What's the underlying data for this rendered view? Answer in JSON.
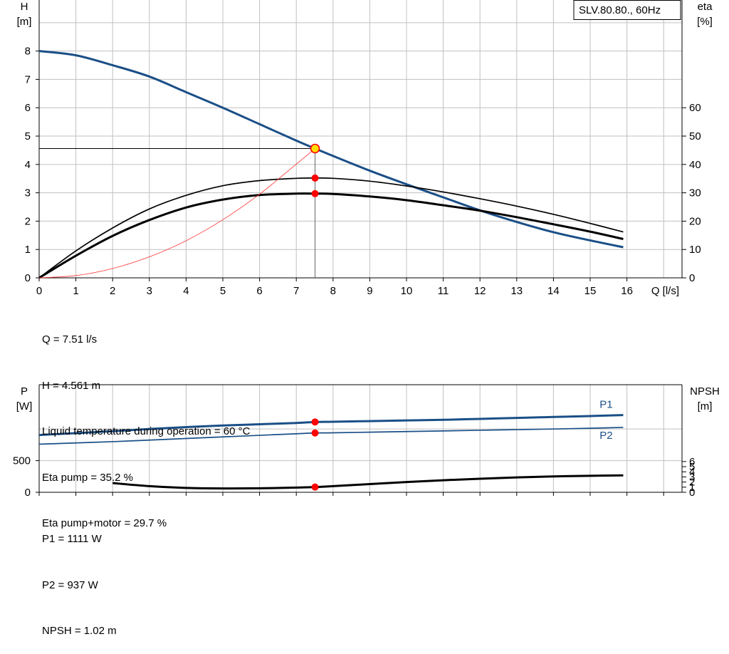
{
  "chart_data": [
    {
      "type": "line",
      "title": "SLV.80.80., 60Hz",
      "xlabel": "Q [l/s]",
      "ylabel_left": [
        "H",
        "[m]"
      ],
      "ylabel_right": [
        "eta",
        "[%]"
      ],
      "x_ticks": [
        "0",
        "1",
        "2",
        "3",
        "4",
        "5",
        "6",
        "7",
        "8",
        "9",
        "10",
        "11",
        "12",
        "13",
        "14",
        "15",
        "16"
      ],
      "y_left_ticks": [
        "0",
        "1",
        "2",
        "3",
        "4",
        "5",
        "6",
        "7",
        "8"
      ],
      "y_right_ticks": [
        "0",
        "10",
        "20",
        "30",
        "40",
        "50",
        "60"
      ],
      "xlim": [
        0,
        17.5
      ],
      "ylim_left": [
        0,
        9.8
      ],
      "ylim_right": [
        0,
        98
      ],
      "grid": true,
      "series": [
        {
          "name": "",
          "axis": "left",
          "color": "#1a4f87",
          "width": 3,
          "x": [
            0,
            1,
            2,
            3,
            4,
            5,
            6,
            7,
            7.51,
            8,
            9,
            10,
            11,
            12,
            13,
            14,
            15,
            15.9
          ],
          "values": [
            8.0,
            7.85,
            7.5,
            7.1,
            6.55,
            6.0,
            5.42,
            4.84,
            4.561,
            4.3,
            3.78,
            3.3,
            2.84,
            2.38,
            1.97,
            1.61,
            1.32,
            1.08
          ]
        },
        {
          "name": "",
          "axis": "right",
          "color": "#000000",
          "width": 1.7,
          "x": [
            0,
            1,
            2,
            3,
            4,
            5,
            6,
            7,
            7.51,
            8,
            9,
            10,
            11,
            12,
            13,
            14,
            15,
            15.9
          ],
          "values": [
            0,
            9.5,
            17.6,
            24.3,
            29.1,
            32.5,
            34.3,
            35.1,
            35.2,
            35.1,
            34.1,
            32.4,
            30.3,
            27.9,
            25.3,
            22.4,
            19.2,
            16.2
          ]
        },
        {
          "name": "",
          "axis": "right",
          "color": "#000000",
          "width": 3,
          "x": [
            0,
            1,
            2,
            3,
            4,
            5,
            6,
            7,
            7.51,
            8,
            9,
            10,
            11,
            12,
            13,
            14,
            15,
            15.9
          ],
          "values": [
            0,
            7.8,
            14.8,
            20.4,
            24.8,
            27.6,
            29.2,
            29.7,
            29.7,
            29.6,
            28.7,
            27.4,
            25.6,
            23.7,
            21.4,
            18.9,
            16.3,
            13.7
          ]
        },
        {
          "name": "",
          "axis": "left",
          "color": "#ff3333",
          "width": 0.8,
          "x": [
            0,
            1,
            2,
            3,
            4,
            5,
            6,
            7,
            7.51
          ],
          "values": [
            0,
            0.08,
            0.33,
            0.74,
            1.31,
            2.05,
            2.95,
            4.01,
            4.561
          ]
        }
      ],
      "operating_point": {
        "x": 7.51,
        "H": 4.561,
        "eta_pump": 35.2,
        "eta_pump_motor": 29.7
      }
    },
    {
      "type": "line",
      "ylabel_left": [
        "P",
        "[W]"
      ],
      "ylabel_right": [
        "NPSH",
        "[m]"
      ],
      "y_left_ticks": [
        "0",
        "500"
      ],
      "y_right_ticks": [
        "0",
        "1",
        "2",
        "3",
        "4",
        "5",
        "6"
      ],
      "xlim": [
        0,
        17.5
      ],
      "ylim_left": [
        0,
        1700
      ],
      "ylim_right": [
        0,
        21
      ],
      "grid": true,
      "series": [
        {
          "name": "P1",
          "axis": "left",
          "color": "#1a4f87",
          "width": 3,
          "x": [
            0,
            1,
            2,
            3,
            4,
            5,
            6,
            7,
            7.51,
            8,
            9,
            10,
            11,
            12,
            13,
            14,
            15,
            15.9
          ],
          "values": [
            905,
            935,
            965,
            1000,
            1030,
            1055,
            1075,
            1095,
            1111,
            1115,
            1125,
            1135,
            1145,
            1160,
            1175,
            1190,
            1205,
            1220
          ]
        },
        {
          "name": "P2",
          "axis": "left",
          "color": "#1a4f87",
          "width": 1.7,
          "x": [
            0,
            1,
            2,
            3,
            4,
            5,
            6,
            7,
            7.51,
            8,
            9,
            10,
            11,
            12,
            13,
            14,
            15,
            15.9
          ],
          "values": [
            760,
            780,
            800,
            825,
            850,
            875,
            900,
            925,
            937,
            940,
            950,
            960,
            970,
            980,
            990,
            1000,
            1012,
            1025
          ]
        },
        {
          "name": "",
          "axis": "right",
          "color": "#000000",
          "width": 3,
          "x": [
            2,
            3,
            4,
            5,
            6,
            7,
            7.51,
            8,
            9,
            10,
            11,
            12,
            13,
            14,
            15,
            15.9
          ],
          "values": [
            1.8,
            1.2,
            0.85,
            0.75,
            0.78,
            0.92,
            1.02,
            1.2,
            1.6,
            2.0,
            2.35,
            2.65,
            2.9,
            3.1,
            3.22,
            3.3
          ]
        }
      ],
      "operating_point": {
        "x": 7.51,
        "P1": 1111,
        "P2": 937,
        "NPSH": 1.02
      }
    }
  ],
  "info_top": [
    "Q = 7.51 l/s",
    "H = 4.561 m",
    "Liquid temperature during operation = 60 °C",
    "Eta pump = 35.2 %",
    "Eta pump+motor = 29.7 %"
  ],
  "info_bottom": [
    "P1 = 1111 W",
    "P2 = 937 W",
    "NPSH = 1.02 m"
  ],
  "colors": {
    "pump_curve": "#1a4f87",
    "marker": "#ff0000",
    "duty_marker": "#ffdd00",
    "grid": "#c0c0c0"
  }
}
